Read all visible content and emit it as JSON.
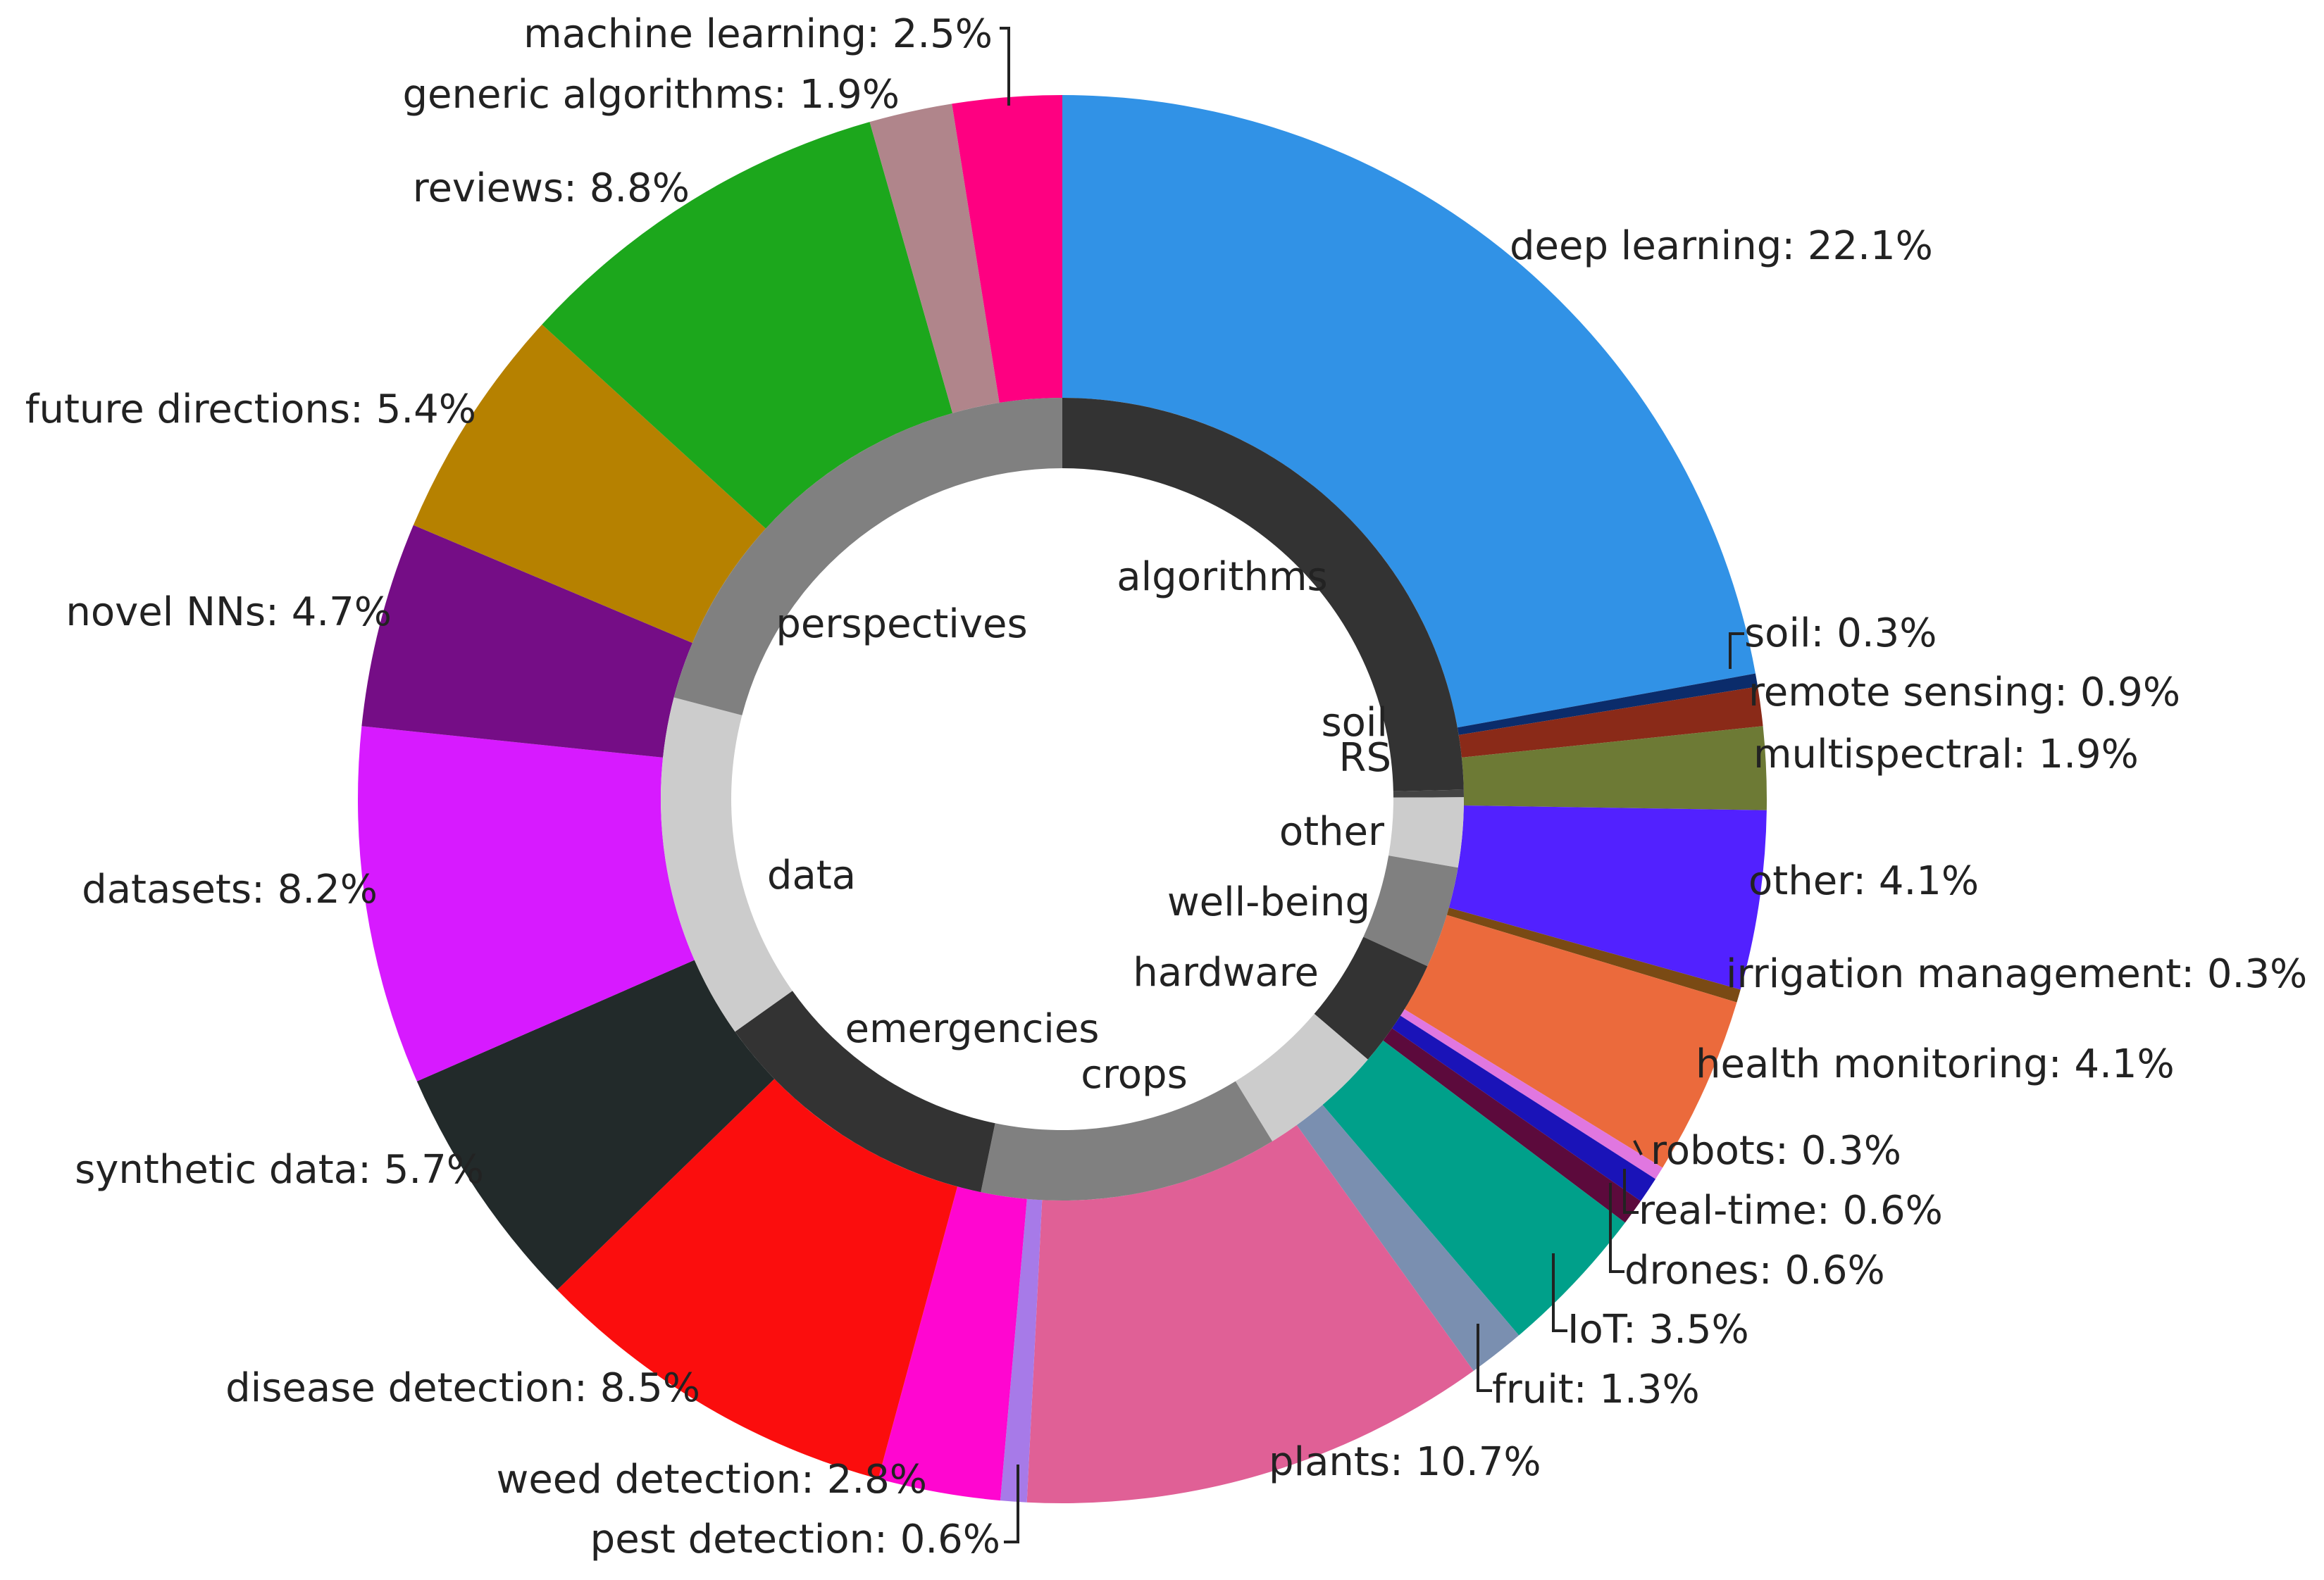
{
  "chart_data": {
    "type": "pie",
    "title": "",
    "inner_ring": [
      {
        "label": "algorithms",
        "value": 24.6,
        "color": "#333333"
      },
      {
        "label": "soil",
        "value": 0.3,
        "color": "#444444"
      },
      {
        "label": "RS",
        "value": 2.8,
        "color": "#cccccc"
      },
      {
        "label": "other",
        "value": 4.1,
        "color": "#808080"
      },
      {
        "label": "well-being",
        "value": 4.4,
        "color": "#333333"
      },
      {
        "label": "hardware",
        "value": 5.0,
        "color": "#cccccc"
      },
      {
        "label": "crops",
        "value": 12.0,
        "color": "#808080"
      },
      {
        "label": "emergencies",
        "value": 11.9,
        "color": "#333333"
      },
      {
        "label": "data",
        "value": 13.9,
        "color": "#cccccc"
      },
      {
        "label": "perspectives",
        "value": 20.9,
        "color": "#808080"
      }
    ],
    "outer_ring": [
      {
        "label": "deep learning",
        "value": 22.1,
        "text": "deep learning: 22.1%",
        "color": "#3192e6"
      },
      {
        "label": "soil",
        "value": 0.3,
        "text": "soil: 0.3%",
        "color": "#0b2c6b"
      },
      {
        "label": "remote sensing",
        "value": 0.9,
        "text": "remote sensing: 0.9%",
        "color": "#8a2a18"
      },
      {
        "label": "multispectral",
        "value": 1.9,
        "text": "multispectral: 1.9%",
        "color": "#6d7a35"
      },
      {
        "label": "other",
        "value": 4.1,
        "text": "other: 4.1%",
        "color": "#5221ff"
      },
      {
        "label": "irrigation management",
        "value": 0.3,
        "text": "irrigation management: 0.3%",
        "color": "#7a4a14"
      },
      {
        "label": "health monitoring",
        "value": 4.1,
        "text": "health monitoring: 4.1%",
        "color": "#eb6a3c"
      },
      {
        "label": "robots",
        "value": 0.3,
        "text": "robots: 0.3%",
        "color": "#e077e0"
      },
      {
        "label": "real-time",
        "value": 0.6,
        "text": "real-time: 0.6%",
        "color": "#1a13b8"
      },
      {
        "label": "drones",
        "value": 0.6,
        "text": "drones: 0.6%",
        "color": "#5c0a3c"
      },
      {
        "label": "IoT",
        "value": 3.5,
        "text": "IoT: 3.5%",
        "color": "#00a08a"
      },
      {
        "label": "fruit",
        "value": 1.3,
        "text": "fruit: 1.3%",
        "color": "#7a8fb0"
      },
      {
        "label": "plants",
        "value": 10.7,
        "text": "plants: 10.7%",
        "color": "#e06096"
      },
      {
        "label": "pest detection",
        "value": 0.6,
        "text": "pest detection: 0.6%",
        "color": "#a77ae8"
      },
      {
        "label": "weed detection",
        "value": 2.8,
        "text": "weed detection: 2.8%",
        "color": "#ff06d0"
      },
      {
        "label": "disease detection",
        "value": 8.5,
        "text": "disease detection: 8.5%",
        "color": "#fb0d0d"
      },
      {
        "label": "synthetic data",
        "value": 5.7,
        "text": "synthetic data: 5.7%",
        "color": "#222a2a"
      },
      {
        "label": "datasets",
        "value": 8.2,
        "text": "datasets: 8.2%",
        "color": "#d71aff"
      },
      {
        "label": "novel NNs",
        "value": 4.7,
        "text": "novel NNs: 4.7%",
        "color": "#750d86"
      },
      {
        "label": "future directions",
        "value": 5.4,
        "text": "future directions: 5.4%",
        "color": "#b68100"
      },
      {
        "label": "reviews",
        "value": 8.8,
        "text": "reviews: 8.8%",
        "color": "#1ca71c"
      },
      {
        "label": "generic algorithms",
        "value": 1.9,
        "text": "generic algorithms: 1.9%",
        "color": "#b0858b"
      },
      {
        "label": "machine learning",
        "value": 2.5,
        "text": "machine learning: 2.5%",
        "color": "#fe0081"
      }
    ]
  }
}
